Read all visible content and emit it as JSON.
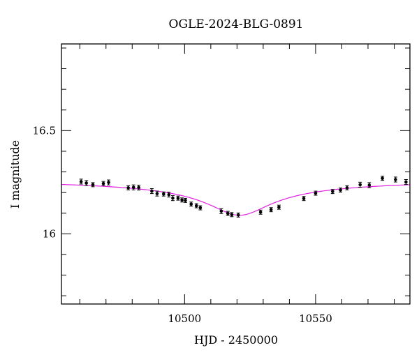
{
  "chart_data": {
    "type": "scatter",
    "title": "OGLE-2024-BLG-0891",
    "xlabel": "HJD - 2450000",
    "ylabel": "I magnitude",
    "xlim": [
      10453,
      10586
    ],
    "ylim": [
      16.92,
      15.66
    ],
    "y_inverted": true,
    "x_major_ticks": [
      10500,
      10550
    ],
    "x_major_tick_labels": [
      "10500",
      "10550"
    ],
    "x_minor_ticks": [
      10460,
      10470,
      10480,
      10490,
      10510,
      10520,
      10530,
      10540,
      10560,
      10570,
      10580
    ],
    "y_major_ticks": [
      16.0,
      16.5
    ],
    "y_major_tick_labels": [
      "16",
      "16.5"
    ],
    "y_minor_ticks": [
      15.7,
      15.8,
      15.9,
      16.1,
      16.2,
      16.3,
      16.4,
      16.6,
      16.7,
      16.8,
      16.9
    ],
    "series": [
      {
        "name": "observations",
        "marker": "dot with error bar",
        "color": "#000000",
        "points": [
          {
            "x": 10460.5,
            "y": 16.253,
            "err": 0.012
          },
          {
            "x": 10462.5,
            "y": 16.246,
            "err": 0.012
          },
          {
            "x": 10465.0,
            "y": 16.238,
            "err": 0.01
          },
          {
            "x": 10469.0,
            "y": 16.244,
            "err": 0.01
          },
          {
            "x": 10471.0,
            "y": 16.249,
            "err": 0.012
          },
          {
            "x": 10478.5,
            "y": 16.223,
            "err": 0.01
          },
          {
            "x": 10480.5,
            "y": 16.225,
            "err": 0.012
          },
          {
            "x": 10482.5,
            "y": 16.224,
            "err": 0.012
          },
          {
            "x": 10487.5,
            "y": 16.207,
            "err": 0.012
          },
          {
            "x": 10489.5,
            "y": 16.195,
            "err": 0.012
          },
          {
            "x": 10492.0,
            "y": 16.193,
            "err": 0.01
          },
          {
            "x": 10494.0,
            "y": 16.19,
            "err": 0.012
          },
          {
            "x": 10495.5,
            "y": 16.173,
            "err": 0.012
          },
          {
            "x": 10497.5,
            "y": 16.173,
            "err": 0.01
          },
          {
            "x": 10499.0,
            "y": 16.164,
            "err": 0.01
          },
          {
            "x": 10500.3,
            "y": 16.162,
            "err": 0.01
          },
          {
            "x": 10502.5,
            "y": 16.144,
            "err": 0.01
          },
          {
            "x": 10504.5,
            "y": 16.136,
            "err": 0.01
          },
          {
            "x": 10506.0,
            "y": 16.126,
            "err": 0.01
          },
          {
            "x": 10514.0,
            "y": 16.11,
            "err": 0.012
          },
          {
            "x": 10516.5,
            "y": 16.099,
            "err": 0.01
          },
          {
            "x": 10518.0,
            "y": 16.093,
            "err": 0.01
          },
          {
            "x": 10520.5,
            "y": 16.091,
            "err": 0.01
          },
          {
            "x": 10529.0,
            "y": 16.105,
            "err": 0.01
          },
          {
            "x": 10533.0,
            "y": 16.117,
            "err": 0.01
          },
          {
            "x": 10536.0,
            "y": 16.129,
            "err": 0.01
          },
          {
            "x": 10545.5,
            "y": 16.171,
            "err": 0.01
          },
          {
            "x": 10550.0,
            "y": 16.197,
            "err": 0.01
          },
          {
            "x": 10556.5,
            "y": 16.205,
            "err": 0.01
          },
          {
            "x": 10559.5,
            "y": 16.212,
            "err": 0.01
          },
          {
            "x": 10562.0,
            "y": 16.223,
            "err": 0.01
          },
          {
            "x": 10567.0,
            "y": 16.238,
            "err": 0.012
          },
          {
            "x": 10570.5,
            "y": 16.236,
            "err": 0.012
          },
          {
            "x": 10575.5,
            "y": 16.269,
            "err": 0.01
          },
          {
            "x": 10580.5,
            "y": 16.263,
            "err": 0.012
          },
          {
            "x": 10584.5,
            "y": 16.251,
            "err": 0.012
          }
        ]
      },
      {
        "name": "model",
        "type": "line",
        "color": "#e020e0",
        "model": {
          "baseline_mag": 16.27,
          "peak_x": 10521.0,
          "peak_amplitude": 0.18,
          "width": 25.0
        }
      }
    ]
  }
}
